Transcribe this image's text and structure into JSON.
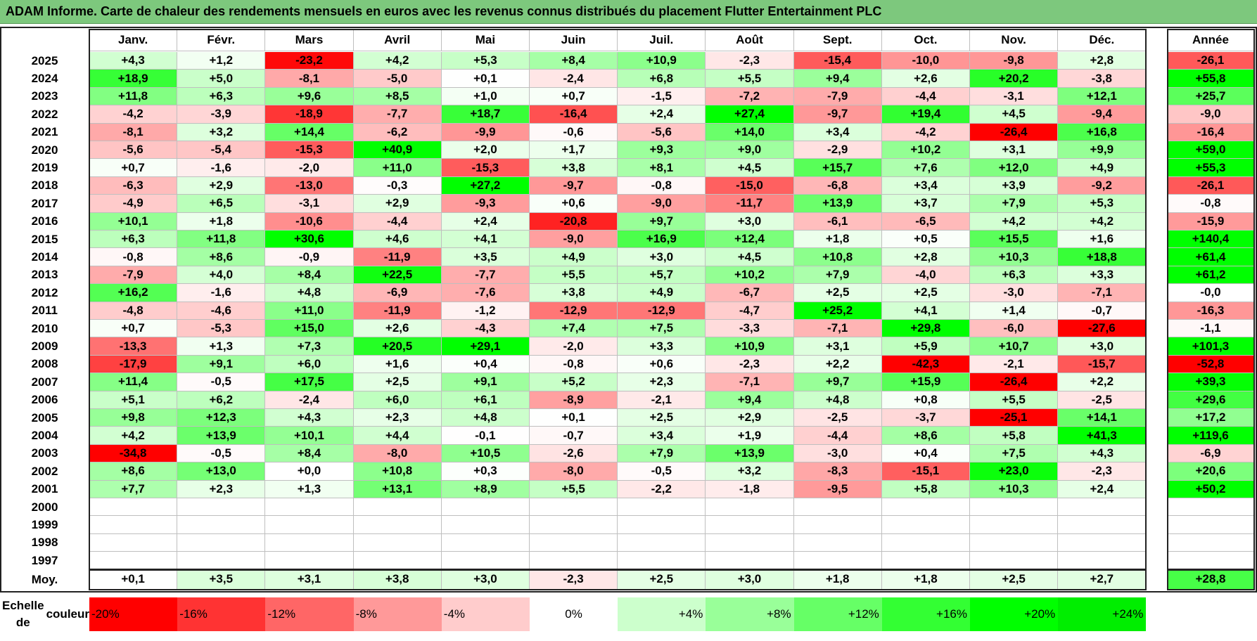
{
  "title": "ADAM Informe. Carte de chaleur des rendements mensuels en euros avec les revenus connus distribués du placement Flutter Entertainment PLC",
  "chart_data": {
    "type": "heatmap",
    "months": [
      "Janv.",
      "Févr.",
      "Mars",
      "Avril",
      "Mai",
      "Juin",
      "Juil.",
      "Août",
      "Sept.",
      "Oct.",
      "Nov.",
      "Déc."
    ],
    "year_header": "Année",
    "rows": [
      {
        "year": "2025",
        "values": [
          "+4,3",
          "+1,2",
          "-23,2",
          "+4,2",
          "+5,3",
          "+8,4",
          "+10,9",
          "-2,3",
          "-15,4",
          "-10,0",
          "-9,8",
          "+2,8"
        ],
        "annual": "-26,1"
      },
      {
        "year": "2024",
        "values": [
          "+18,9",
          "+5,0",
          "-8,1",
          "-5,0",
          "+0,1",
          "-2,4",
          "+6,8",
          "+5,5",
          "+9,4",
          "+2,6",
          "+20,2",
          "-3,8"
        ],
        "annual": "+55,8"
      },
      {
        "year": "2023",
        "values": [
          "+11,8",
          "+6,3",
          "+9,6",
          "+8,5",
          "+1,0",
          "+0,7",
          "-1,5",
          "-7,2",
          "-7,9",
          "-4,4",
          "-3,1",
          "+12,1"
        ],
        "annual": "+25,7"
      },
      {
        "year": "2022",
        "values": [
          "-4,2",
          "-3,9",
          "-18,9",
          "-7,7",
          "+18,7",
          "-16,4",
          "+2,4",
          "+27,4",
          "-9,7",
          "+19,4",
          "+4,5",
          "-9,4"
        ],
        "annual": "-9,0"
      },
      {
        "year": "2021",
        "values": [
          "-8,1",
          "+3,2",
          "+14,4",
          "-6,2",
          "-9,9",
          "-0,6",
          "-5,6",
          "+14,0",
          "+3,4",
          "-4,2",
          "-26,4",
          "+16,8"
        ],
        "annual": "-16,4"
      },
      {
        "year": "2020",
        "values": [
          "-5,6",
          "-5,4",
          "-15,3",
          "+40,9",
          "+2,0",
          "+1,7",
          "+9,3",
          "+9,0",
          "-2,9",
          "+10,2",
          "+3,1",
          "+9,9"
        ],
        "annual": "+59,0"
      },
      {
        "year": "2019",
        "values": [
          "+0,7",
          "-1,6",
          "-2,0",
          "+11,0",
          "-15,3",
          "+3,8",
          "+8,1",
          "+4,5",
          "+15,7",
          "+7,6",
          "+12,0",
          "+4,9"
        ],
        "annual": "+55,3"
      },
      {
        "year": "2018",
        "values": [
          "-6,3",
          "+2,9",
          "-13,0",
          "-0,3",
          "+27,2",
          "-9,7",
          "-0,8",
          "-15,0",
          "-6,8",
          "+3,4",
          "+3,9",
          "-9,2"
        ],
        "annual": "-26,1"
      },
      {
        "year": "2017",
        "values": [
          "-4,9",
          "+6,5",
          "-3,1",
          "+2,9",
          "-9,3",
          "+0,6",
          "-9,0",
          "-11,7",
          "+13,9",
          "+3,7",
          "+7,9",
          "+5,3"
        ],
        "annual": "-0,8"
      },
      {
        "year": "2016",
        "values": [
          "+10,1",
          "+1,8",
          "-10,6",
          "-4,4",
          "+2,4",
          "-20,8",
          "+9,7",
          "+3,0",
          "-6,1",
          "-6,5",
          "+4,2",
          "+4,2"
        ],
        "annual": "-15,9"
      },
      {
        "year": "2015",
        "values": [
          "+6,3",
          "+11,8",
          "+30,6",
          "+4,6",
          "+4,1",
          "-9,0",
          "+16,9",
          "+12,4",
          "+1,8",
          "+0,5",
          "+15,5",
          "+1,6"
        ],
        "annual": "+140,4"
      },
      {
        "year": "2014",
        "values": [
          "-0,8",
          "+8,6",
          "-0,9",
          "-11,9",
          "+3,5",
          "+4,9",
          "+3,0",
          "+4,5",
          "+10,8",
          "+2,8",
          "+10,3",
          "+18,8"
        ],
        "annual": "+61,4"
      },
      {
        "year": "2013",
        "values": [
          "-7,9",
          "+4,0",
          "+8,4",
          "+22,5",
          "-7,7",
          "+5,5",
          "+5,7",
          "+10,2",
          "+7,9",
          "-4,0",
          "+6,3",
          "+3,3"
        ],
        "annual": "+61,2"
      },
      {
        "year": "2012",
        "values": [
          "+16,2",
          "-1,6",
          "+4,8",
          "-6,9",
          "-7,6",
          "+3,8",
          "+4,9",
          "-6,7",
          "+2,5",
          "+2,5",
          "-3,0",
          "-7,1"
        ],
        "annual": "-0,0"
      },
      {
        "year": "2011",
        "values": [
          "-4,8",
          "-4,6",
          "+11,0",
          "-11,9",
          "-1,2",
          "-12,9",
          "-12,9",
          "-4,7",
          "+25,2",
          "+4,1",
          "+1,4",
          "-0,7"
        ],
        "annual": "-16,3"
      },
      {
        "year": "2010",
        "values": [
          "+0,7",
          "-5,3",
          "+15,0",
          "+2,6",
          "-4,3",
          "+7,4",
          "+7,5",
          "-3,3",
          "-7,1",
          "+29,8",
          "-6,0",
          "-27,6"
        ],
        "annual": "-1,1"
      },
      {
        "year": "2009",
        "values": [
          "-13,3",
          "+1,3",
          "+7,3",
          "+20,5",
          "+29,1",
          "-2,0",
          "+3,3",
          "+10,9",
          "+3,1",
          "+5,9",
          "+10,7",
          "+3,0"
        ],
        "annual": "+101,3"
      },
      {
        "year": "2008",
        "values": [
          "-17,9",
          "+9,1",
          "+6,0",
          "+1,6",
          "+0,4",
          "-0,8",
          "+0,6",
          "-2,3",
          "+2,2",
          "-42,3",
          "-2,1",
          "-15,7"
        ],
        "annual": "-52,8"
      },
      {
        "year": "2007",
        "values": [
          "+11,4",
          "-0,5",
          "+17,5",
          "+2,5",
          "+9,1",
          "+5,2",
          "+2,3",
          "-7,1",
          "+9,7",
          "+15,9",
          "-26,4",
          "+2,2"
        ],
        "annual": "+39,3"
      },
      {
        "year": "2006",
        "values": [
          "+5,1",
          "+6,2",
          "-2,4",
          "+6,0",
          "+6,1",
          "-8,9",
          "-2,1",
          "+9,4",
          "+4,8",
          "+0,8",
          "+5,5",
          "-2,5"
        ],
        "annual": "+29,6"
      },
      {
        "year": "2005",
        "values": [
          "+9,8",
          "+12,3",
          "+4,3",
          "+2,3",
          "+4,8",
          "+0,1",
          "+2,5",
          "+2,9",
          "-2,5",
          "-3,7",
          "-25,1",
          "+14,1"
        ],
        "annual": "+17,2"
      },
      {
        "year": "2004",
        "values": [
          "+4,2",
          "+13,9",
          "+10,1",
          "+4,4",
          "-0,1",
          "-0,7",
          "+3,4",
          "+1,9",
          "-4,4",
          "+8,6",
          "+5,8",
          "+41,3"
        ],
        "annual": "+119,6"
      },
      {
        "year": "2003",
        "values": [
          "-34,8",
          "-0,5",
          "+8,4",
          "-8,0",
          "+10,5",
          "-2,6",
          "+7,9",
          "+13,9",
          "-3,0",
          "+0,4",
          "+7,5",
          "+4,3"
        ],
        "annual": "-6,9"
      },
      {
        "year": "2002",
        "values": [
          "+8,6",
          "+13,0",
          "+0,0",
          "+10,8",
          "+0,3",
          "-8,0",
          "-0,5",
          "+3,2",
          "-8,3",
          "-15,1",
          "+23,0",
          "-2,3"
        ],
        "annual": "+20,6"
      },
      {
        "year": "2001",
        "values": [
          "+7,7",
          "+2,3",
          "+1,3",
          "+13,1",
          "+8,9",
          "+5,5",
          "-2,2",
          "-1,8",
          "-9,5",
          "+5,8",
          "+10,3",
          "+2,4"
        ],
        "annual": "+50,2"
      },
      {
        "year": "2000",
        "values": [
          "",
          "",
          "",
          "",
          "",
          "",
          "",
          "",
          "",
          "",
          "",
          ""
        ],
        "annual": ""
      },
      {
        "year": "1999",
        "values": [
          "",
          "",
          "",
          "",
          "",
          "",
          "",
          "",
          "",
          "",
          "",
          ""
        ],
        "annual": ""
      },
      {
        "year": "1998",
        "values": [
          "",
          "",
          "",
          "",
          "",
          "",
          "",
          "",
          "",
          "",
          "",
          ""
        ],
        "annual": ""
      },
      {
        "year": "1997",
        "values": [
          "",
          "",
          "",
          "",
          "",
          "",
          "",
          "",
          "",
          "",
          "",
          ""
        ],
        "annual": ""
      }
    ],
    "average": {
      "label": "Moy.",
      "values": [
        "+0,1",
        "+3,5",
        "+3,1",
        "+3,8",
        "+3,0",
        "-2,3",
        "+2,5",
        "+3,0",
        "+1,8",
        "+1,8",
        "+2,5",
        "+2,7"
      ],
      "annual": "+28,8"
    },
    "color_scale": {
      "label_line1": "Echelle de",
      "label_line2": "couleur",
      "steps": [
        {
          "label": "-20%",
          "value": -20,
          "color": "#ff0000"
        },
        {
          "label": "-16%",
          "value": -16,
          "color": "#ff3333"
        },
        {
          "label": "-12%",
          "value": -12,
          "color": "#ff6666"
        },
        {
          "label": "-8%",
          "value": -8,
          "color": "#ff9999"
        },
        {
          "label": "-4%",
          "value": -4,
          "color": "#ffcccc"
        },
        {
          "label": "0%",
          "value": 0,
          "color": "#ffffff"
        },
        {
          "label": "+4%",
          "value": 4,
          "color": "#ccffcc"
        },
        {
          "label": "+8%",
          "value": 8,
          "color": "#99ff99"
        },
        {
          "label": "+12%",
          "value": 12,
          "color": "#66ff66"
        },
        {
          "label": "+16%",
          "value": 16,
          "color": "#33ff33"
        },
        {
          "label": "+20%",
          "value": 20,
          "color": "#00ff00"
        },
        {
          "label": "+24%",
          "value": 24,
          "color": "#00ee00"
        }
      ]
    }
  }
}
